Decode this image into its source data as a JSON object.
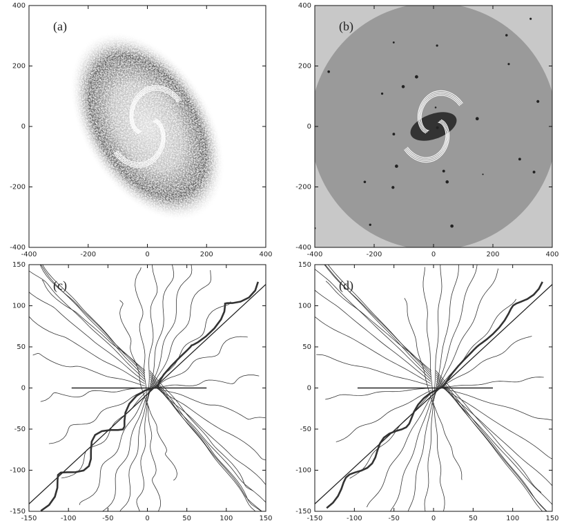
{
  "chart_data": [
    {
      "type": "image",
      "panel_label": "(a)",
      "xlim": [
        -400,
        400
      ],
      "ylim": [
        -400,
        400
      ],
      "xticks": [
        -400,
        -200,
        0,
        200,
        400
      ],
      "yticks": [
        -400,
        -200,
        0,
        200,
        400
      ]
    },
    {
      "type": "image",
      "panel_label": "(b)",
      "xlim": [
        -400,
        400
      ],
      "ylim": [
        -400,
        400
      ],
      "xticks": [
        -400,
        -200,
        0,
        200,
        400
      ],
      "yticks": [
        -400,
        -200,
        0,
        200,
        400
      ]
    },
    {
      "type": "contour",
      "panel_label": "(c)",
      "xlim": [
        -150,
        150
      ],
      "ylim": [
        -150,
        150
      ],
      "xticks": [
        -150,
        -100,
        -50,
        0,
        50,
        100,
        150
      ],
      "yticks": [
        -150,
        -100,
        -50,
        0,
        50,
        100,
        150
      ]
    },
    {
      "type": "contour",
      "panel_label": "(d)",
      "xlim": [
        -150,
        150
      ],
      "ylim": [
        -150,
        150
      ],
      "xticks": [
        -150,
        -100,
        -50,
        0,
        50,
        100,
        150
      ],
      "yticks": [
        -150,
        -100,
        -50,
        0,
        50,
        100,
        150
      ]
    }
  ]
}
